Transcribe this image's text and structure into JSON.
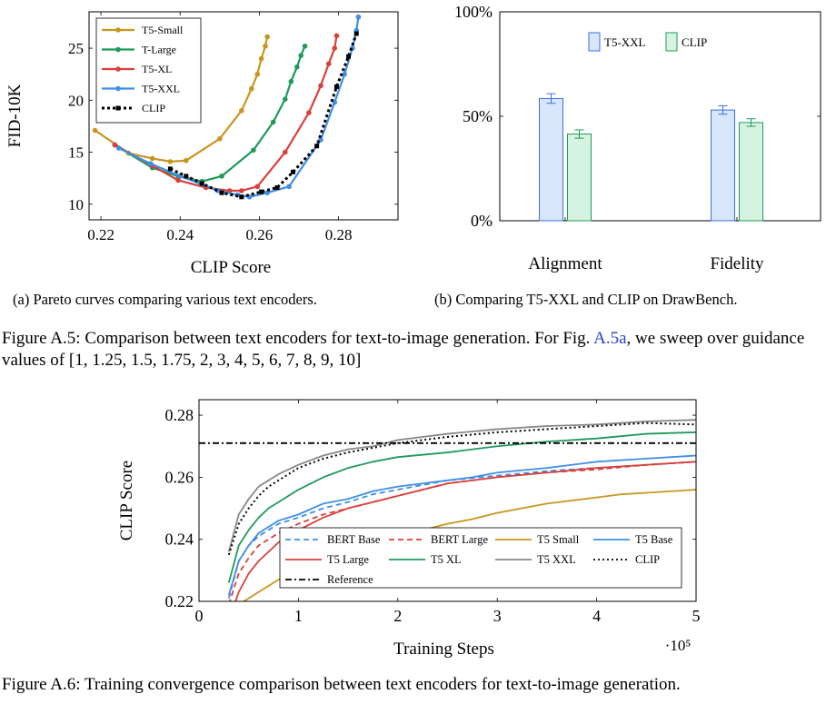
{
  "chart_data": [
    {
      "id": "fig_a5a",
      "type": "line",
      "xlabel": "CLIP Score",
      "ylabel": "FID-10K",
      "xlim": [
        0.217,
        0.295
      ],
      "ylim": [
        8.5,
        28.5
      ],
      "xticks": [
        0.22,
        0.24,
        0.26,
        0.28
      ],
      "xtick_labels": [
        "0.22",
        "0.24",
        "0.26",
        "0.28"
      ],
      "yticks": [
        10,
        15,
        20,
        25
      ],
      "ytick_labels": [
        "10",
        "15",
        "20",
        "25"
      ],
      "legend": "top-left",
      "series": [
        {
          "name": "T5-Small",
          "color": "#c9951e",
          "style": "solid",
          "x": [
            0.2185,
            0.227,
            0.233,
            0.2375,
            0.2415,
            0.25,
            0.2555,
            0.258,
            0.2595,
            0.2605,
            0.2615,
            0.262
          ],
          "y": [
            17.1,
            14.9,
            14.4,
            14.1,
            14.2,
            16.3,
            19.0,
            21.1,
            22.5,
            24.0,
            25.2,
            26.1
          ]
        },
        {
          "name": "T-Large",
          "color": "#1f9a5a",
          "style": "solid",
          "x": [
            0.2235,
            0.233,
            0.2395,
            0.2455,
            0.2505,
            0.2585,
            0.2635,
            0.2665,
            0.268,
            0.2695,
            0.2705,
            0.2715
          ],
          "y": [
            15.7,
            13.5,
            12.7,
            12.2,
            12.7,
            15.2,
            17.9,
            20.1,
            21.8,
            23.2,
            24.3,
            25.2
          ]
        },
        {
          "name": "T5-XL",
          "color": "#d9403a",
          "style": "solid",
          "x": [
            0.2235,
            0.233,
            0.2395,
            0.2465,
            0.2525,
            0.2555,
            0.2595,
            0.2665,
            0.2725,
            0.2755,
            0.2775,
            0.279,
            0.2795
          ],
          "y": [
            15.7,
            13.7,
            12.3,
            11.6,
            11.3,
            11.3,
            11.7,
            15.0,
            18.8,
            21.4,
            23.5,
            25.0,
            26.2
          ]
        },
        {
          "name": "T5-XXL",
          "color": "#3f8ee5",
          "style": "solid",
          "x": [
            0.2245,
            0.2325,
            0.24,
            0.245,
            0.2495,
            0.2545,
            0.2575,
            0.262,
            0.2675,
            0.2755,
            0.279,
            0.2815,
            0.2835,
            0.2845,
            0.285
          ],
          "y": [
            15.4,
            13.9,
            12.7,
            12.0,
            11.3,
            10.9,
            10.7,
            11.1,
            11.7,
            16.2,
            19.8,
            22.5,
            25.0,
            26.7,
            28.0
          ]
        },
        {
          "name": "CLIP",
          "color": "#000000",
          "style": "dotted",
          "x": [
            0.2375,
            0.2415,
            0.2455,
            0.2505,
            0.2555,
            0.2605,
            0.2645,
            0.2685,
            0.2745,
            0.2795,
            0.2825,
            0.2845
          ],
          "y": [
            13.4,
            12.7,
            12.0,
            11.1,
            10.7,
            11.2,
            11.6,
            13.1,
            15.6,
            21.3,
            24.2,
            26.4
          ]
        }
      ]
    },
    {
      "id": "fig_a5b",
      "type": "bar",
      "categories": [
        "Alignment",
        "Fidelity"
      ],
      "ylim": [
        0,
        100
      ],
      "yticks": [
        0,
        50,
        100
      ],
      "ytick_labels": [
        "0%",
        "50%",
        "100%"
      ],
      "legend": "top-center",
      "series": [
        {
          "name": "T5-XXL",
          "color": "#3d6fe0",
          "fill": "#d8e6fb",
          "values": [
            58.5,
            53.0
          ],
          "errors": [
            2.3,
            2.0
          ]
        },
        {
          "name": "CLIP",
          "color": "#1f9a5a",
          "fill": "#d6f2e0",
          "values": [
            41.5,
            47.0
          ],
          "errors": [
            2.0,
            1.8
          ]
        }
      ]
    },
    {
      "id": "fig_a6",
      "type": "line",
      "xlabel": "Training Steps",
      "ylabel": "CLIP Score",
      "x_multiplier": "·10⁵",
      "xlim": [
        0,
        5
      ],
      "ylim": [
        0.22,
        0.285
      ],
      "xticks": [
        0,
        1,
        2,
        3,
        4,
        5
      ],
      "xtick_labels": [
        "0",
        "1",
        "2",
        "3",
        "4",
        "5"
      ],
      "yticks": [
        0.22,
        0.24,
        0.26,
        0.28
      ],
      "ytick_labels": [
        "0.22",
        "0.24",
        "0.26",
        "0.28"
      ],
      "legend": "bottom-right",
      "series": [
        {
          "name": "BERT Base",
          "color": "#3f8ee5",
          "style": "dashed",
          "x": [
            0.3,
            0.4,
            0.5,
            0.6,
            0.7,
            0.8,
            1.0,
            1.25,
            1.5,
            1.75,
            2.0,
            2.5,
            3.0,
            3.5,
            4.0,
            4.5,
            5.0
          ],
          "y": [
            0.221,
            0.233,
            0.238,
            0.241,
            0.243,
            0.245,
            0.247,
            0.25,
            0.252,
            0.2545,
            0.256,
            0.259,
            0.2605,
            0.262,
            0.263,
            0.264,
            0.265
          ]
        },
        {
          "name": "BERT Large",
          "color": "#d9403a",
          "style": "dashed",
          "x": [
            0.3,
            0.4,
            0.5,
            0.6,
            0.7,
            0.8,
            1.0,
            1.25,
            1.5,
            1.75,
            2.0,
            2.5,
            3.0,
            3.5,
            4.0,
            4.5,
            5.0
          ],
          "y": [
            0.219,
            0.229,
            0.234,
            0.238,
            0.24,
            0.242,
            0.245,
            0.248,
            0.25,
            0.252,
            0.254,
            0.258,
            0.26,
            0.2615,
            0.2625,
            0.264,
            0.265
          ]
        },
        {
          "name": "T5 Small",
          "color": "#c9951e",
          "style": "solid",
          "x": [
            0.4,
            0.6,
            0.8,
            1.0,
            1.25,
            1.5,
            1.75,
            2.0,
            2.25,
            2.5,
            2.75,
            3.0,
            3.25,
            3.5,
            3.75,
            4.0,
            4.25,
            4.5,
            5.0
          ],
          "y": [
            0.219,
            0.223,
            0.227,
            0.23,
            0.234,
            0.237,
            0.239,
            0.2415,
            0.243,
            0.245,
            0.2465,
            0.2485,
            0.25,
            0.2515,
            0.2525,
            0.2535,
            0.2545,
            0.255,
            0.256
          ]
        },
        {
          "name": "T5 Base",
          "color": "#3f8ee5",
          "style": "solid",
          "x": [
            0.3,
            0.4,
            0.5,
            0.6,
            0.7,
            0.8,
            1.0,
            1.25,
            1.5,
            1.75,
            2.0,
            2.25,
            2.5,
            2.75,
            3.0,
            3.5,
            4.0,
            4.5,
            5.0
          ],
          "y": [
            0.222,
            0.233,
            0.238,
            0.242,
            0.244,
            0.246,
            0.248,
            0.2515,
            0.253,
            0.2555,
            0.257,
            0.258,
            0.259,
            0.26,
            0.2615,
            0.263,
            0.265,
            0.266,
            0.267
          ]
        },
        {
          "name": "T5 Large",
          "color": "#d9403a",
          "style": "solid",
          "x": [
            0.3,
            0.4,
            0.5,
            0.6,
            0.7,
            0.8,
            1.0,
            1.25,
            1.5,
            1.75,
            2.0,
            2.5,
            3.0,
            3.5,
            4.0,
            4.5,
            5.0
          ],
          "y": [
            0.214,
            0.223,
            0.229,
            0.233,
            0.236,
            0.239,
            0.243,
            0.247,
            0.25,
            0.252,
            0.254,
            0.258,
            0.26,
            0.2615,
            0.263,
            0.264,
            0.265
          ]
        },
        {
          "name": "T5 XL",
          "color": "#1f9a5a",
          "style": "solid",
          "x": [
            0.3,
            0.4,
            0.5,
            0.6,
            0.7,
            0.8,
            1.0,
            1.25,
            1.5,
            1.75,
            2.0,
            2.5,
            3.0,
            3.5,
            4.0,
            4.5,
            5.0
          ],
          "y": [
            0.226,
            0.238,
            0.243,
            0.247,
            0.25,
            0.252,
            0.256,
            0.26,
            0.263,
            0.265,
            0.2665,
            0.268,
            0.27,
            0.2715,
            0.2725,
            0.274,
            0.2745
          ]
        },
        {
          "name": "T5 XXL",
          "color": "#888888",
          "style": "solid",
          "x": [
            0.3,
            0.4,
            0.5,
            0.6,
            0.7,
            0.8,
            1.0,
            1.25,
            1.5,
            1.75,
            2.0,
            2.5,
            3.0,
            3.5,
            4.0,
            4.5,
            5.0
          ],
          "y": [
            0.236,
            0.248,
            0.253,
            0.257,
            0.259,
            0.261,
            0.264,
            0.267,
            0.269,
            0.27,
            0.272,
            0.274,
            0.2755,
            0.2765,
            0.277,
            0.278,
            0.2785
          ]
        },
        {
          "name": "CLIP",
          "color": "#000000",
          "style": "dotted",
          "x": [
            0.3,
            0.4,
            0.5,
            0.6,
            0.7,
            0.8,
            1.0,
            1.25,
            1.5,
            1.75,
            2.0,
            2.5,
            3.0,
            3.5,
            4.0,
            4.5,
            5.0
          ],
          "y": [
            0.235,
            0.245,
            0.25,
            0.254,
            0.257,
            0.259,
            0.263,
            0.266,
            0.268,
            0.2695,
            0.271,
            0.273,
            0.2745,
            0.2755,
            0.2765,
            0.2775,
            0.277
          ]
        },
        {
          "name": "Reference",
          "color": "#000000",
          "style": "dashdot",
          "x": [
            0,
            5
          ],
          "y": [
            0.271,
            0.271
          ]
        }
      ]
    }
  ],
  "captions": {
    "sub_a": "(a) Pareto curves comparing various text encoders.",
    "sub_b": "(b) Comparing T5-XXL and CLIP on DrawBench.",
    "a5_label": "Figure A.5:",
    "a5_text_1": " Comparison between text encoders for text-to-image generation. For Fig. ",
    "a5_ref": "A.5a",
    "a5_text_2": ", we sweep over guidance values of [1, 1.25, 1.5, 1.75, 2, 3, 4, 5, 6, 7, 8, 9, 10]",
    "a6_label": "Figure A.6:",
    "a6_text": " Training convergence comparison between text encoders for text-to-image generation."
  }
}
